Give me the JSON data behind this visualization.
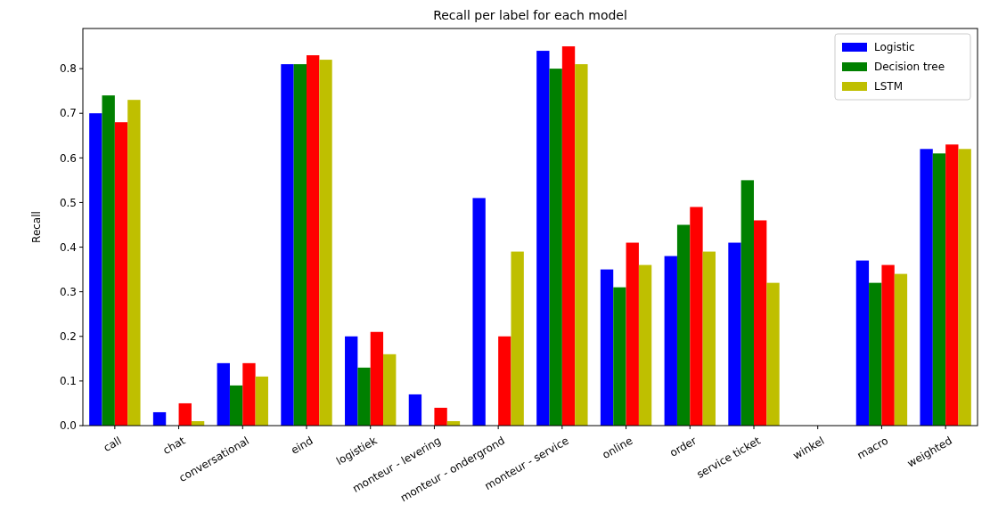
{
  "chart_data": {
    "type": "bar",
    "title": "Recall per label for each model",
    "ylabel": "Recall",
    "categories": [
      "call",
      "chat",
      "conversational",
      "eind",
      "logistiek",
      "monteur - levering",
      "monteur - ondergrond",
      "monteur - service",
      "online",
      "order",
      "service ticket",
      "winkel",
      "macro",
      "weighted"
    ],
    "series": [
      {
        "name": "Logistic",
        "color": "#0000ff",
        "values": [
          0.7,
          0.03,
          0.14,
          0.81,
          0.2,
          0.07,
          0.51,
          0.84,
          0.35,
          0.38,
          0.41,
          0,
          0.37,
          0.62
        ]
      },
      {
        "name": "Decision tree",
        "color": "#008000",
        "values": [
          0.74,
          0,
          0.09,
          0.81,
          0.13,
          0,
          0,
          0.8,
          0.31,
          0.45,
          0.55,
          0,
          0.32,
          0.61
        ]
      },
      {
        "color": "#ff0000",
        "values": [
          0.68,
          0.05,
          0.14,
          0.83,
          0.21,
          0.04,
          0.2,
          0.85,
          0.41,
          0.49,
          0.46,
          0,
          0.36,
          0.63
        ]
      },
      {
        "name": "LSTM",
        "color": "#bfbf00",
        "values": [
          0.73,
          0.01,
          0.11,
          0.82,
          0.16,
          0.01,
          0.39,
          0.81,
          0.36,
          0.39,
          0.32,
          0,
          0.34,
          0.62
        ]
      }
    ],
    "ylim": [
      0,
      0.89
    ],
    "yticks": [
      {
        "value": 0,
        "label": "0.0"
      },
      {
        "value": 0.1,
        "label": "0.1"
      },
      {
        "value": 0.2,
        "label": "0.2"
      },
      {
        "value": 0.3,
        "label": "0.3"
      },
      {
        "value": 0.4,
        "label": "0.4"
      },
      {
        "value": 0.5,
        "label": "0.5"
      },
      {
        "value": 0.6,
        "label": "0.6"
      },
      {
        "value": 0.7,
        "label": "0.7"
      },
      {
        "value": 0.8,
        "label": "0.8"
      }
    ],
    "grid": false,
    "legend": "top right"
  }
}
